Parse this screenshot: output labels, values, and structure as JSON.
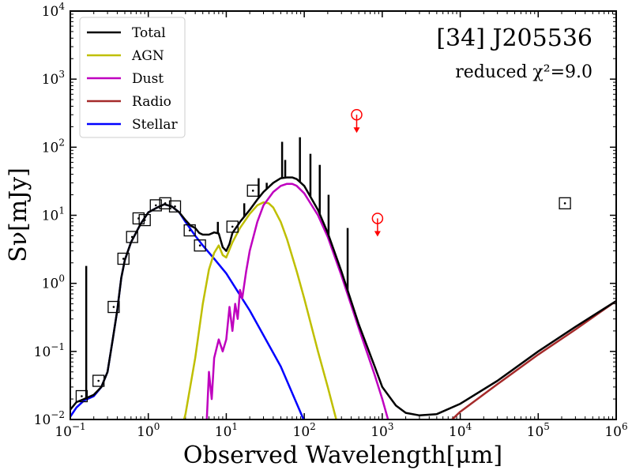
{
  "chart_data": {
    "type": "line",
    "title": "[34] J205536",
    "subtitle": "reduced χ²=9.0",
    "xlabel": "Observed Wavelength[μm]",
    "ylabel": "Sν[mJy]",
    "x_scale": "log",
    "y_scale": "log",
    "xlim": [
      0.1,
      1000000
    ],
    "ylim": [
      0.01,
      10000
    ],
    "x_ticks": [
      {
        "value": 0.1,
        "base": "10",
        "exp": "−1"
      },
      {
        "value": 1,
        "base": "10",
        "exp": "0"
      },
      {
        "value": 10,
        "base": "10",
        "exp": "1"
      },
      {
        "value": 100,
        "base": "10",
        "exp": "2"
      },
      {
        "value": 1000,
        "base": "10",
        "exp": "3"
      },
      {
        "value": 10000,
        "base": "10",
        "exp": "4"
      },
      {
        "value": 100000,
        "base": "10",
        "exp": "5"
      },
      {
        "value": 1000000,
        "base": "10",
        "exp": "6"
      }
    ],
    "y_ticks": [
      {
        "value": 0.01,
        "base": "10",
        "exp": "−2"
      },
      {
        "value": 0.1,
        "base": "10",
        "exp": "−1"
      },
      {
        "value": 1,
        "base": "10",
        "exp": "0"
      },
      {
        "value": 10,
        "base": "10",
        "exp": "1"
      },
      {
        "value": 100,
        "base": "10",
        "exp": "2"
      },
      {
        "value": 1000,
        "base": "10",
        "exp": "3"
      },
      {
        "value": 10000,
        "base": "10",
        "exp": "4"
      }
    ],
    "legend_position": "top-left",
    "series": [
      {
        "name": "Stellar",
        "color": "#0000ff",
        "points": [
          [
            0.1,
            0.011
          ],
          [
            0.12,
            0.015
          ],
          [
            0.15,
            0.019
          ],
          [
            0.2,
            0.022
          ],
          [
            0.25,
            0.03
          ],
          [
            0.3,
            0.05
          ],
          [
            0.35,
            0.15
          ],
          [
            0.4,
            0.4
          ],
          [
            0.45,
            1.2
          ],
          [
            0.5,
            2.2
          ],
          [
            0.6,
            4.0
          ],
          [
            0.8,
            7.5
          ],
          [
            1.0,
            11
          ],
          [
            1.3,
            13
          ],
          [
            1.6,
            14.5
          ],
          [
            2.0,
            13.5
          ],
          [
            2.5,
            11
          ],
          [
            3.0,
            8
          ],
          [
            4.0,
            5
          ],
          [
            5.0,
            3.6
          ],
          [
            7.0,
            2.3
          ],
          [
            10,
            1.4
          ],
          [
            20,
            0.4
          ],
          [
            50,
            0.06
          ],
          [
            100,
            0.0095
          ]
        ]
      },
      {
        "name": "AGN",
        "color": "#bfbf00",
        "points": [
          [
            2.8,
            0.009
          ],
          [
            3,
            0.012
          ],
          [
            4,
            0.08
          ],
          [
            5,
            0.5
          ],
          [
            6,
            1.6
          ],
          [
            7,
            2.8
          ],
          [
            8,
            3.6
          ],
          [
            9,
            2.6
          ],
          [
            10,
            2.4
          ],
          [
            12,
            4
          ],
          [
            15,
            6.5
          ],
          [
            20,
            10.5
          ],
          [
            25,
            14
          ],
          [
            30,
            15.5
          ],
          [
            35,
            15
          ],
          [
            40,
            13
          ],
          [
            50,
            8
          ],
          [
            60,
            4.5
          ],
          [
            80,
            1.5
          ],
          [
            100,
            0.6
          ],
          [
            150,
            0.1
          ],
          [
            200,
            0.03
          ],
          [
            260,
            0.0095
          ]
        ]
      },
      {
        "name": "Dust",
        "color": "#bf00bf",
        "points": [
          [
            5.6,
            0.009
          ],
          [
            6,
            0.05
          ],
          [
            6.5,
            0.02
          ],
          [
            7,
            0.08
          ],
          [
            8,
            0.15
          ],
          [
            9,
            0.1
          ],
          [
            10,
            0.15
          ],
          [
            11,
            0.45
          ],
          [
            12,
            0.2
          ],
          [
            13,
            0.5
          ],
          [
            14,
            0.3
          ],
          [
            15,
            0.8
          ],
          [
            16,
            0.6
          ],
          [
            18,
            1.5
          ],
          [
            20,
            3
          ],
          [
            25,
            8
          ],
          [
            30,
            14
          ],
          [
            40,
            22
          ],
          [
            50,
            27
          ],
          [
            60,
            29
          ],
          [
            70,
            29
          ],
          [
            80,
            27
          ],
          [
            100,
            21
          ],
          [
            150,
            10
          ],
          [
            200,
            4.8
          ],
          [
            300,
            1.3
          ],
          [
            500,
            0.22
          ],
          [
            800,
            0.045
          ],
          [
            1000,
            0.02
          ],
          [
            1200,
            0.0095
          ]
        ]
      },
      {
        "name": "Radio",
        "color": "#a52a2a",
        "points": [
          [
            7500,
            0.0095
          ],
          [
            10000,
            0.013
          ],
          [
            30000,
            0.033
          ],
          [
            100000,
            0.09
          ],
          [
            300000,
            0.21
          ],
          [
            1000000,
            0.55
          ]
        ]
      },
      {
        "name": "Total",
        "color": "#000000",
        "points": [
          [
            0.1,
            0.014
          ],
          [
            0.12,
            0.018
          ],
          [
            0.15,
            0.02
          ],
          [
            0.2,
            0.023
          ],
          [
            0.25,
            0.03
          ],
          [
            0.3,
            0.05
          ],
          [
            0.35,
            0.15
          ],
          [
            0.4,
            0.4
          ],
          [
            0.45,
            1.2
          ],
          [
            0.5,
            2.2
          ],
          [
            0.6,
            4.0
          ],
          [
            0.8,
            7.5
          ],
          [
            1.0,
            11
          ],
          [
            1.3,
            13
          ],
          [
            1.6,
            14.5
          ],
          [
            2.0,
            13.5
          ],
          [
            2.5,
            11
          ],
          [
            3.0,
            8.5
          ],
          [
            3.5,
            7
          ],
          [
            4.0,
            6.5
          ],
          [
            4.5,
            5.5
          ],
          [
            5.0,
            5.2
          ],
          [
            6,
            5.2
          ],
          [
            7,
            5.6
          ],
          [
            8,
            5.4
          ],
          [
            9,
            3.4
          ],
          [
            10,
            3.0
          ],
          [
            11,
            3.8
          ],
          [
            12,
            5.5
          ],
          [
            15,
            8
          ],
          [
            20,
            12
          ],
          [
            25,
            17
          ],
          [
            30,
            22
          ],
          [
            40,
            30
          ],
          [
            50,
            35
          ],
          [
            60,
            36
          ],
          [
            70,
            36
          ],
          [
            80,
            34
          ],
          [
            100,
            27
          ],
          [
            150,
            12
          ],
          [
            200,
            5.5
          ],
          [
            300,
            1.5
          ],
          [
            500,
            0.25
          ],
          [
            800,
            0.06
          ],
          [
            1000,
            0.03
          ],
          [
            1500,
            0.016
          ],
          [
            2000,
            0.0125
          ],
          [
            3000,
            0.0115
          ],
          [
            5000,
            0.012
          ],
          [
            10000,
            0.017
          ],
          [
            30000,
            0.037
          ],
          [
            100000,
            0.1
          ],
          [
            300000,
            0.23
          ],
          [
            1000000,
            0.55
          ]
        ]
      }
    ],
    "emission_spikes": [
      {
        "x": 0.16,
        "y": 1.8
      },
      {
        "x": 7.8,
        "y": 8
      },
      {
        "x": 17,
        "y": 15
      },
      {
        "x": 26,
        "y": 35
      },
      {
        "x": 33,
        "y": 30
      },
      {
        "x": 52,
        "y": 120
      },
      {
        "x": 57,
        "y": 65
      },
      {
        "x": 88,
        "y": 140
      },
      {
        "x": 120,
        "y": 80
      },
      {
        "x": 158,
        "y": 55
      },
      {
        "x": 205,
        "y": 20
      },
      {
        "x": 360,
        "y": 6.5
      }
    ],
    "photometry": [
      {
        "x": 0.14,
        "y": 0.022
      },
      {
        "x": 0.23,
        "y": 0.037
      },
      {
        "x": 0.36,
        "y": 0.45
      },
      {
        "x": 0.48,
        "y": 2.3
      },
      {
        "x": 0.62,
        "y": 4.8
      },
      {
        "x": 0.75,
        "y": 9.0
      },
      {
        "x": 0.9,
        "y": 8.5
      },
      {
        "x": 1.25,
        "y": 14
      },
      {
        "x": 1.65,
        "y": 15
      },
      {
        "x": 2.2,
        "y": 13.5
      },
      {
        "x": 3.4,
        "y": 6.0
      },
      {
        "x": 4.6,
        "y": 3.6
      },
      {
        "x": 12,
        "y": 6.8
      },
      {
        "x": 22,
        "y": 23
      },
      {
        "x": 220000,
        "y": 15
      }
    ],
    "upper_limits": [
      {
        "x": 470,
        "y": 300
      },
      {
        "x": 870,
        "y": 9
      }
    ]
  }
}
